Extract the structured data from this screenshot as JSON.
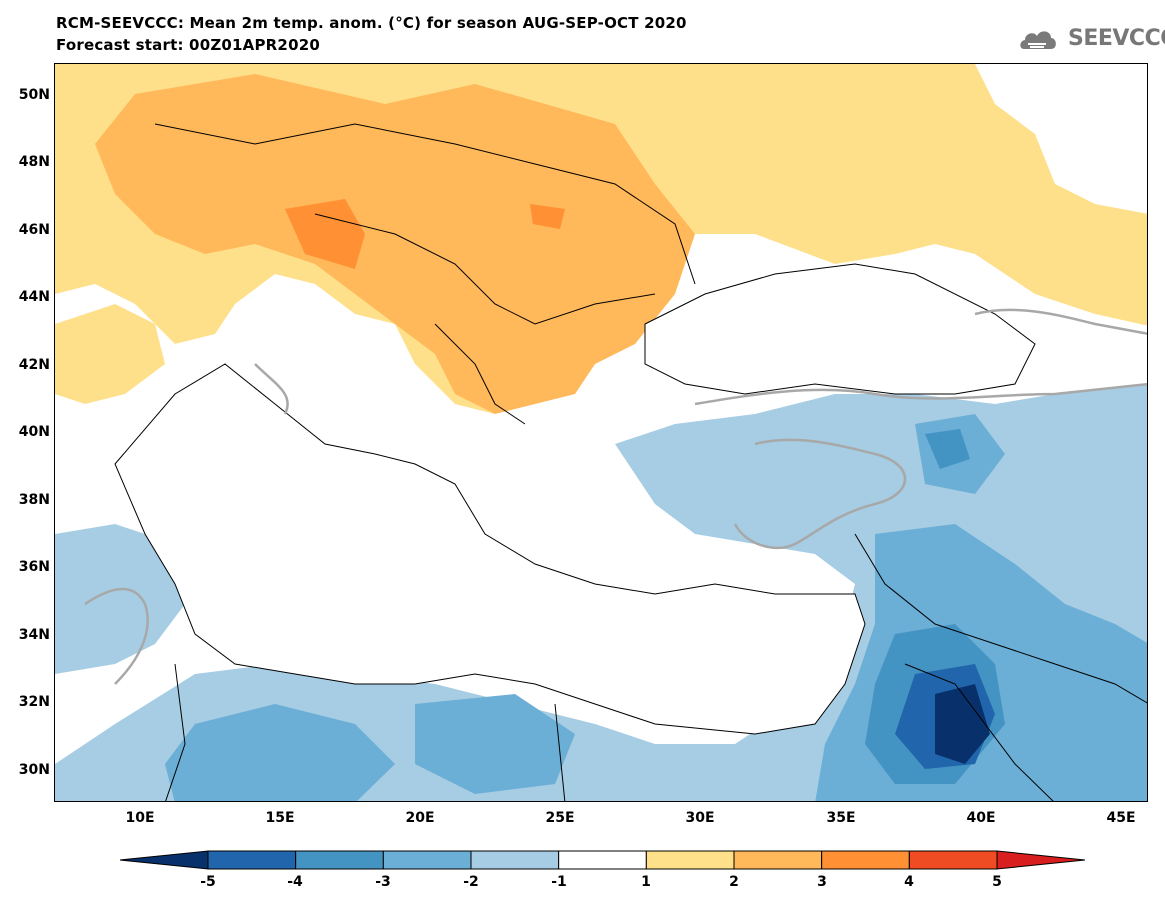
{
  "header": {
    "title_line1": "RCM-SEEVCCC: Mean 2m temp. anom. (°C) for season AUG-SEP-OCT 2020",
    "title_line2": "Forecast start: 00Z01APR2020",
    "logo_text": "SEEVCCC",
    "logo_icon": "cloud-logo-icon"
  },
  "map": {
    "lat_range": [
      29,
      51
    ],
    "lon_range": [
      7,
      46
    ],
    "lat_labels": [
      "50N",
      "48N",
      "46N",
      "44N",
      "42N",
      "40N",
      "38N",
      "36N",
      "34N",
      "32N",
      "30N"
    ],
    "lon_labels": [
      "10E",
      "15E",
      "20E",
      "25E",
      "30E",
      "35E",
      "40E",
      "45E"
    ]
  },
  "colorbar": {
    "levels": [
      "-5",
      "-4",
      "-3",
      "-2",
      "-1",
      "1",
      "2",
      "3",
      "4",
      "5"
    ],
    "colors": [
      "#08306b",
      "#2166ac",
      "#4393c3",
      "#6baed6",
      "#a6cde4",
      "#ffffff",
      "#ffe08a",
      "#ffb85a",
      "#ff9033",
      "#f04c24",
      "#d81e1e"
    ]
  }
}
